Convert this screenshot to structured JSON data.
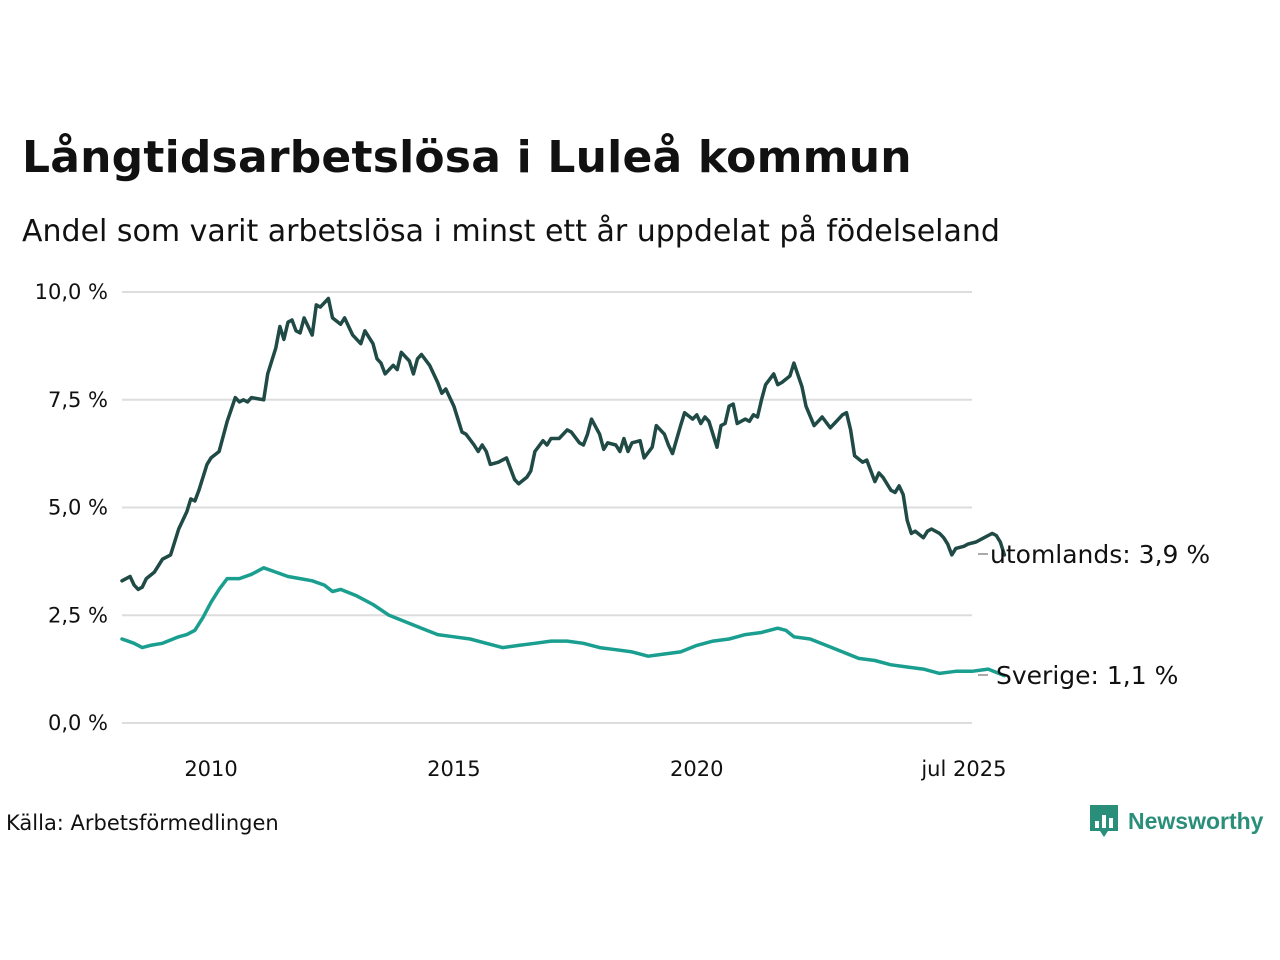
{
  "title": "Långtidsarbetslösa i Luleå kommun",
  "subtitle": "Andel som varit arbetslösa i minst ett år uppdelat på födelseland",
  "source": "Källa: Arbetsförmedlingen",
  "brand": {
    "name": "Newsworthy",
    "icon": "bar-chart-pin-icon",
    "color": "#2a8f7a"
  },
  "chart_data": {
    "type": "line",
    "x_start": "2008-03",
    "x_end": "2025-07",
    "ylim": [
      0,
      10
    ],
    "yticks": [
      "0,0 %",
      "2,5 %",
      "5,0 %",
      "7,5 %",
      "10,0 %"
    ],
    "xticks": [
      {
        "label": "2010",
        "date": "2010-01"
      },
      {
        "label": "2015",
        "date": "2015-01"
      },
      {
        "label": "2020",
        "date": "2020-01"
      },
      {
        "label": "jul 2025",
        "date": "2025-07"
      }
    ],
    "grid": true,
    "series": [
      {
        "name": "utomlands",
        "end_label": "utomlands: 3,9 %",
        "color": "#1f4a45",
        "points": [
          [
            "2008-03",
            3.3
          ],
          [
            "2008-05",
            3.4
          ],
          [
            "2008-06",
            3.2
          ],
          [
            "2008-07",
            3.1
          ],
          [
            "2008-08",
            3.15
          ],
          [
            "2008-09",
            3.35
          ],
          [
            "2008-11",
            3.5
          ],
          [
            "2009-01",
            3.8
          ],
          [
            "2009-03",
            3.9
          ],
          [
            "2009-05",
            4.5
          ],
          [
            "2009-07",
            4.9
          ],
          [
            "2009-08",
            5.2
          ],
          [
            "2009-09",
            5.15
          ],
          [
            "2009-10",
            5.4
          ],
          [
            "2009-12",
            6.0
          ],
          [
            "2010-01",
            6.15
          ],
          [
            "2010-03",
            6.3
          ],
          [
            "2010-05",
            7.0
          ],
          [
            "2010-07",
            7.55
          ],
          [
            "2010-08",
            7.45
          ],
          [
            "2010-09",
            7.5
          ],
          [
            "2010-10",
            7.45
          ],
          [
            "2010-11",
            7.55
          ],
          [
            "2011-02",
            7.5
          ],
          [
            "2011-03",
            8.1
          ],
          [
            "2011-05",
            8.7
          ],
          [
            "2011-06",
            9.2
          ],
          [
            "2011-07",
            8.9
          ],
          [
            "2011-08",
            9.3
          ],
          [
            "2011-09",
            9.35
          ],
          [
            "2011-10",
            9.1
          ],
          [
            "2011-11",
            9.05
          ],
          [
            "2011-12",
            9.4
          ],
          [
            "2012-02",
            9.0
          ],
          [
            "2012-03",
            9.7
          ],
          [
            "2012-04",
            9.65
          ],
          [
            "2012-06",
            9.85
          ],
          [
            "2012-07",
            9.4
          ],
          [
            "2012-09",
            9.25
          ],
          [
            "2012-10",
            9.4
          ],
          [
            "2012-12",
            9.0
          ],
          [
            "2013-02",
            8.8
          ],
          [
            "2013-03",
            9.1
          ],
          [
            "2013-05",
            8.8
          ],
          [
            "2013-06",
            8.45
          ],
          [
            "2013-07",
            8.35
          ],
          [
            "2013-08",
            8.1
          ],
          [
            "2013-10",
            8.3
          ],
          [
            "2013-11",
            8.2
          ],
          [
            "2013-12",
            8.6
          ],
          [
            "2014-02",
            8.4
          ],
          [
            "2014-03",
            8.1
          ],
          [
            "2014-04",
            8.45
          ],
          [
            "2014-05",
            8.55
          ],
          [
            "2014-07",
            8.3
          ],
          [
            "2014-09",
            7.9
          ],
          [
            "2014-10",
            7.65
          ],
          [
            "2014-11",
            7.75
          ],
          [
            "2015-01",
            7.35
          ],
          [
            "2015-03",
            6.75
          ],
          [
            "2015-04",
            6.7
          ],
          [
            "2015-06",
            6.45
          ],
          [
            "2015-07",
            6.3
          ],
          [
            "2015-08",
            6.45
          ],
          [
            "2015-09",
            6.3
          ],
          [
            "2015-10",
            6.0
          ],
          [
            "2015-12",
            6.05
          ],
          [
            "2016-02",
            6.15
          ],
          [
            "2016-04",
            5.65
          ],
          [
            "2016-05",
            5.55
          ],
          [
            "2016-07",
            5.7
          ],
          [
            "2016-08",
            5.85
          ],
          [
            "2016-09",
            6.3
          ],
          [
            "2016-11",
            6.55
          ],
          [
            "2016-12",
            6.45
          ],
          [
            "2017-01",
            6.6
          ],
          [
            "2017-03",
            6.6
          ],
          [
            "2017-05",
            6.8
          ],
          [
            "2017-06",
            6.75
          ],
          [
            "2017-08",
            6.5
          ],
          [
            "2017-09",
            6.45
          ],
          [
            "2017-10",
            6.7
          ],
          [
            "2017-11",
            7.05
          ],
          [
            "2018-01",
            6.7
          ],
          [
            "2018-02",
            6.35
          ],
          [
            "2018-03",
            6.5
          ],
          [
            "2018-05",
            6.45
          ],
          [
            "2018-06",
            6.3
          ],
          [
            "2018-07",
            6.6
          ],
          [
            "2018-08",
            6.3
          ],
          [
            "2018-09",
            6.5
          ],
          [
            "2018-11",
            6.55
          ],
          [
            "2018-12",
            6.15
          ],
          [
            "2019-02",
            6.4
          ],
          [
            "2019-03",
            6.9
          ],
          [
            "2019-05",
            6.7
          ],
          [
            "2019-06",
            6.45
          ],
          [
            "2019-07",
            6.25
          ],
          [
            "2019-09",
            6.9
          ],
          [
            "2019-10",
            7.2
          ],
          [
            "2019-12",
            7.05
          ],
          [
            "2020-01",
            7.15
          ],
          [
            "2020-02",
            6.95
          ],
          [
            "2020-03",
            7.1
          ],
          [
            "2020-04",
            7.0
          ],
          [
            "2020-06",
            6.4
          ],
          [
            "2020-07",
            6.9
          ],
          [
            "2020-08",
            6.95
          ],
          [
            "2020-09",
            7.35
          ],
          [
            "2020-10",
            7.4
          ],
          [
            "2020-11",
            6.95
          ],
          [
            "2021-01",
            7.05
          ],
          [
            "2021-02",
            7.0
          ],
          [
            "2021-03",
            7.15
          ],
          [
            "2021-04",
            7.1
          ],
          [
            "2021-05",
            7.5
          ],
          [
            "2021-06",
            7.85
          ],
          [
            "2021-08",
            8.1
          ],
          [
            "2021-09",
            7.85
          ],
          [
            "2021-10",
            7.9
          ],
          [
            "2021-12",
            8.05
          ],
          [
            "2022-01",
            8.35
          ],
          [
            "2022-03",
            7.8
          ],
          [
            "2022-04",
            7.35
          ],
          [
            "2022-06",
            6.9
          ],
          [
            "2022-07",
            7.0
          ],
          [
            "2022-08",
            7.1
          ],
          [
            "2022-10",
            6.85
          ],
          [
            "2022-11",
            6.95
          ],
          [
            "2023-01",
            7.15
          ],
          [
            "2023-02",
            7.2
          ],
          [
            "2023-03",
            6.8
          ],
          [
            "2023-04",
            6.2
          ],
          [
            "2023-06",
            6.05
          ],
          [
            "2023-07",
            6.1
          ],
          [
            "2023-09",
            5.6
          ],
          [
            "2023-10",
            5.8
          ],
          [
            "2023-11",
            5.7
          ],
          [
            "2024-01",
            5.4
          ],
          [
            "2024-02",
            5.35
          ],
          [
            "2024-03",
            5.5
          ],
          [
            "2024-04",
            5.3
          ],
          [
            "2024-05",
            4.7
          ],
          [
            "2024-06",
            4.4
          ],
          [
            "2024-07",
            4.45
          ],
          [
            "2024-09",
            4.3
          ],
          [
            "2024-10",
            4.45
          ],
          [
            "2024-11",
            4.5
          ],
          [
            "2025-01",
            4.4
          ],
          [
            "2025-02",
            4.3
          ],
          [
            "2025-03",
            4.15
          ],
          [
            "2025-04",
            3.9
          ],
          [
            "2025-05",
            4.05
          ],
          [
            "2025-07",
            4.1
          ],
          [
            "2025-08",
            4.15
          ],
          [
            "2025-10",
            4.2
          ],
          [
            "2025-11",
            4.25
          ],
          [
            "2026-01",
            4.35
          ],
          [
            "2026-02",
            4.4
          ],
          [
            "2026-03",
            4.35
          ],
          [
            "2026-04",
            4.2
          ],
          [
            "2026-05",
            3.9
          ]
        ]
      },
      {
        "name": "Sverige",
        "end_label": "Sverige: 1,1 %",
        "color": "#1a9e8f",
        "points": [
          [
            "2008-03",
            1.95
          ],
          [
            "2008-06",
            1.85
          ],
          [
            "2008-08",
            1.75
          ],
          [
            "2008-10",
            1.8
          ],
          [
            "2009-01",
            1.85
          ],
          [
            "2009-05",
            2.0
          ],
          [
            "2009-07",
            2.05
          ],
          [
            "2009-09",
            2.15
          ],
          [
            "2009-11",
            2.45
          ],
          [
            "2010-01",
            2.8
          ],
          [
            "2010-03",
            3.1
          ],
          [
            "2010-05",
            3.35
          ],
          [
            "2010-08",
            3.35
          ],
          [
            "2010-11",
            3.45
          ],
          [
            "2011-02",
            3.6
          ],
          [
            "2011-05",
            3.5
          ],
          [
            "2011-08",
            3.4
          ],
          [
            "2011-11",
            3.35
          ],
          [
            "2012-02",
            3.3
          ],
          [
            "2012-05",
            3.2
          ],
          [
            "2012-07",
            3.05
          ],
          [
            "2012-09",
            3.1
          ],
          [
            "2013-01",
            2.95
          ],
          [
            "2013-05",
            2.75
          ],
          [
            "2013-09",
            2.5
          ],
          [
            "2014-01",
            2.35
          ],
          [
            "2014-05",
            2.2
          ],
          [
            "2014-09",
            2.05
          ],
          [
            "2015-01",
            2.0
          ],
          [
            "2015-05",
            1.95
          ],
          [
            "2015-09",
            1.85
          ],
          [
            "2016-01",
            1.75
          ],
          [
            "2016-05",
            1.8
          ],
          [
            "2016-09",
            1.85
          ],
          [
            "2017-01",
            1.9
          ],
          [
            "2017-05",
            1.9
          ],
          [
            "2017-09",
            1.85
          ],
          [
            "2018-01",
            1.75
          ],
          [
            "2018-05",
            1.7
          ],
          [
            "2018-09",
            1.65
          ],
          [
            "2019-01",
            1.55
          ],
          [
            "2019-05",
            1.6
          ],
          [
            "2019-09",
            1.65
          ],
          [
            "2020-01",
            1.8
          ],
          [
            "2020-05",
            1.9
          ],
          [
            "2020-09",
            1.95
          ],
          [
            "2021-01",
            2.05
          ],
          [
            "2021-05",
            2.1
          ],
          [
            "2021-07",
            2.15
          ],
          [
            "2021-09",
            2.2
          ],
          [
            "2021-11",
            2.15
          ],
          [
            "2022-01",
            2.0
          ],
          [
            "2022-05",
            1.95
          ],
          [
            "2022-09",
            1.8
          ],
          [
            "2023-01",
            1.65
          ],
          [
            "2023-05",
            1.5
          ],
          [
            "2023-09",
            1.45
          ],
          [
            "2024-01",
            1.35
          ],
          [
            "2024-05",
            1.3
          ],
          [
            "2024-09",
            1.25
          ],
          [
            "2025-01",
            1.15
          ],
          [
            "2025-05",
            1.2
          ],
          [
            "2025-09",
            1.2
          ],
          [
            "2026-01",
            1.25
          ],
          [
            "2026-05",
            1.1
          ]
        ]
      }
    ]
  }
}
